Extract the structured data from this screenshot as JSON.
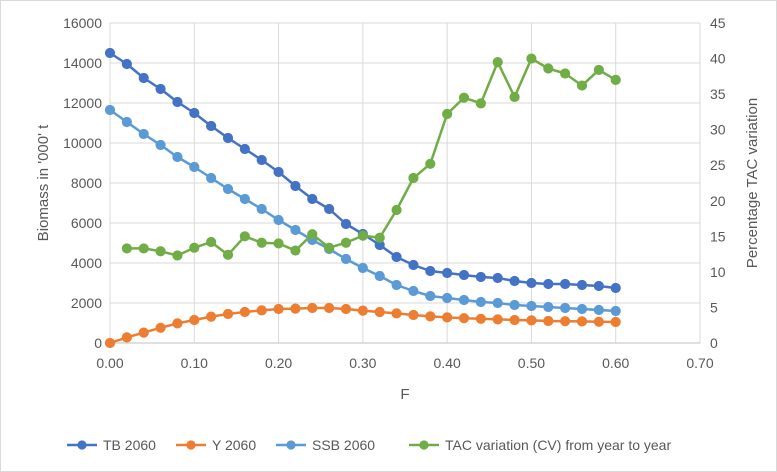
{
  "chart_data": {
    "type": "line",
    "title": "",
    "xlabel": "F",
    "ylabel": "Biomass in '000' t",
    "y2label": "Percentage TAC variation",
    "xlim": [
      0,
      0.7
    ],
    "ylim": [
      0,
      16000
    ],
    "y2lim": [
      0,
      45
    ],
    "x_ticks": [
      "0.00",
      "0.10",
      "0.20",
      "0.30",
      "0.40",
      "0.50",
      "0.60",
      "0.70"
    ],
    "y_ticks": [
      "0",
      "2000",
      "4000",
      "6000",
      "8000",
      "10000",
      "12000",
      "14000",
      "16000"
    ],
    "y2_ticks": [
      "0",
      "5",
      "10",
      "15",
      "20",
      "25",
      "30",
      "35",
      "40",
      "45"
    ],
    "grid": true,
    "legend_position": "bottom",
    "x": [
      0.0,
      0.02,
      0.04,
      0.06,
      0.08,
      0.1,
      0.12,
      0.14,
      0.16,
      0.18,
      0.2,
      0.22,
      0.24,
      0.26,
      0.28,
      0.3,
      0.32,
      0.34,
      0.36,
      0.38,
      0.4,
      0.42,
      0.44,
      0.46,
      0.48,
      0.5,
      0.52,
      0.54,
      0.56,
      0.58,
      0.6
    ],
    "series": [
      {
        "name": "TB 2060",
        "axis": "left",
        "color": "#4472C4",
        "values": [
          14500,
          13950,
          13250,
          12700,
          12050,
          11500,
          10850,
          10250,
          9700,
          9150,
          8550,
          7850,
          7200,
          6700,
          5950,
          5450,
          4900,
          4300,
          3900,
          3600,
          3500,
          3400,
          3300,
          3250,
          3100,
          3000,
          2950,
          2950,
          2900,
          2850,
          2750
        ]
      },
      {
        "name": "Y 2060",
        "axis": "left",
        "color": "#ED7D31",
        "values": [
          0,
          280,
          520,
          760,
          980,
          1150,
          1320,
          1450,
          1550,
          1630,
          1700,
          1720,
          1750,
          1750,
          1700,
          1620,
          1550,
          1480,
          1400,
          1330,
          1280,
          1240,
          1210,
          1180,
          1150,
          1130,
          1100,
          1090,
          1080,
          1060,
          1050
        ]
      },
      {
        "name": "SSB 2060",
        "axis": "left",
        "color": "#5B9BD5",
        "values": [
          11650,
          11050,
          10450,
          9900,
          9300,
          8800,
          8250,
          7700,
          7200,
          6700,
          6150,
          5650,
          5150,
          4700,
          4200,
          3750,
          3350,
          2900,
          2600,
          2350,
          2250,
          2150,
          2050,
          2000,
          1900,
          1850,
          1800,
          1750,
          1700,
          1650,
          1600
        ]
      },
      {
        "name": "TAC variation (CV) from year to year",
        "axis": "right",
        "color": "#70AD47",
        "values": [
          null,
          13.3,
          13.3,
          12.9,
          12.3,
          13.4,
          14.2,
          12.4,
          15.0,
          14.1,
          14.0,
          13.0,
          15.3,
          13.4,
          14.1,
          15.1,
          14.8,
          18.7,
          23.2,
          25.2,
          32.2,
          34.5,
          33.7,
          39.5,
          34.6,
          40.0,
          38.6,
          37.9,
          36.2,
          38.4,
          37.0
        ]
      }
    ]
  }
}
